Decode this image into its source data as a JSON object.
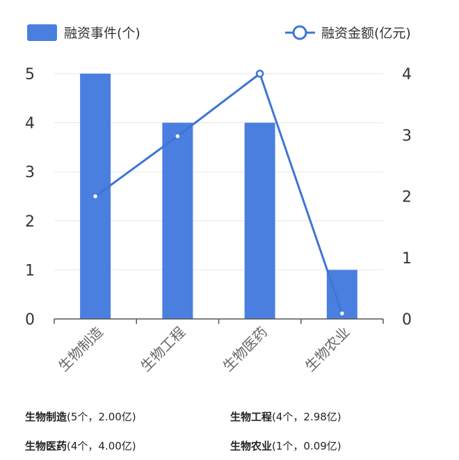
{
  "chart_data": {
    "type": "bar+line",
    "categories": [
      "生物制造",
      "生物工程",
      "生物医药",
      "生物农业"
    ],
    "series": [
      {
        "name": "融资事件(个)",
        "type": "bar",
        "axis": "left",
        "values": [
          5,
          4,
          4,
          1
        ],
        "color": "#4a7fe0"
      },
      {
        "name": "融资金额(亿元)",
        "type": "line",
        "axis": "right",
        "values": [
          2.0,
          2.98,
          4.0,
          0.09
        ],
        "color": "#3d74d6"
      }
    ],
    "y_left": {
      "ylim": [
        0,
        5
      ],
      "ticks": [
        "0",
        "1",
        "2",
        "3",
        "4",
        "5"
      ]
    },
    "y_right": {
      "ylim": [
        0,
        4
      ],
      "ticks": [
        "0",
        "1",
        "2",
        "3",
        "4"
      ]
    },
    "grid": true,
    "legend_placement": "top"
  },
  "summary": [
    {
      "name": "生物制造",
      "detail": "(5个，2.00亿)"
    },
    {
      "name": "生物工程",
      "detail": "(4个，2.98亿)"
    },
    {
      "name": "生物医药",
      "detail": "(4个，4.00亿)"
    },
    {
      "name": "生物农业",
      "detail": "(1个，0.09亿)"
    }
  ]
}
